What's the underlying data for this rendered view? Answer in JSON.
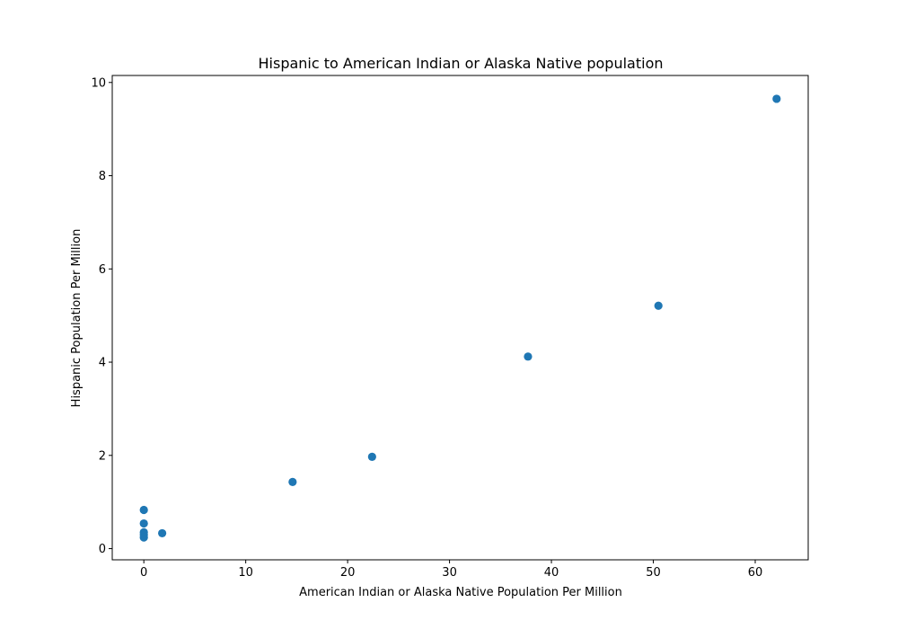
{
  "chart_data": {
    "type": "scatter",
    "title": "Hispanic to American Indian or Alaska Native population",
    "xlabel": "American Indian or Alaska Native Population Per Million",
    "ylabel": "Hispanic Population Per Million",
    "xlim": [
      -3.1,
      65.2
    ],
    "ylim": [
      -0.24,
      10.15
    ],
    "xticks": [
      0,
      10,
      20,
      30,
      40,
      50,
      60
    ],
    "yticks": [
      0,
      2,
      4,
      6,
      8,
      10
    ],
    "grid": false,
    "legend": "none",
    "marker_color": "#1f77b4",
    "points": [
      {
        "x": 0.0,
        "y": 0.83
      },
      {
        "x": 0.0,
        "y": 0.54
      },
      {
        "x": 0.0,
        "y": 0.35
      },
      {
        "x": 0.0,
        "y": 0.3
      },
      {
        "x": 0.0,
        "y": 0.24
      },
      {
        "x": 1.8,
        "y": 0.33
      },
      {
        "x": 14.6,
        "y": 1.43
      },
      {
        "x": 22.4,
        "y": 1.97
      },
      {
        "x": 37.7,
        "y": 4.12
      },
      {
        "x": 50.5,
        "y": 5.21
      },
      {
        "x": 62.1,
        "y": 9.65
      }
    ]
  }
}
